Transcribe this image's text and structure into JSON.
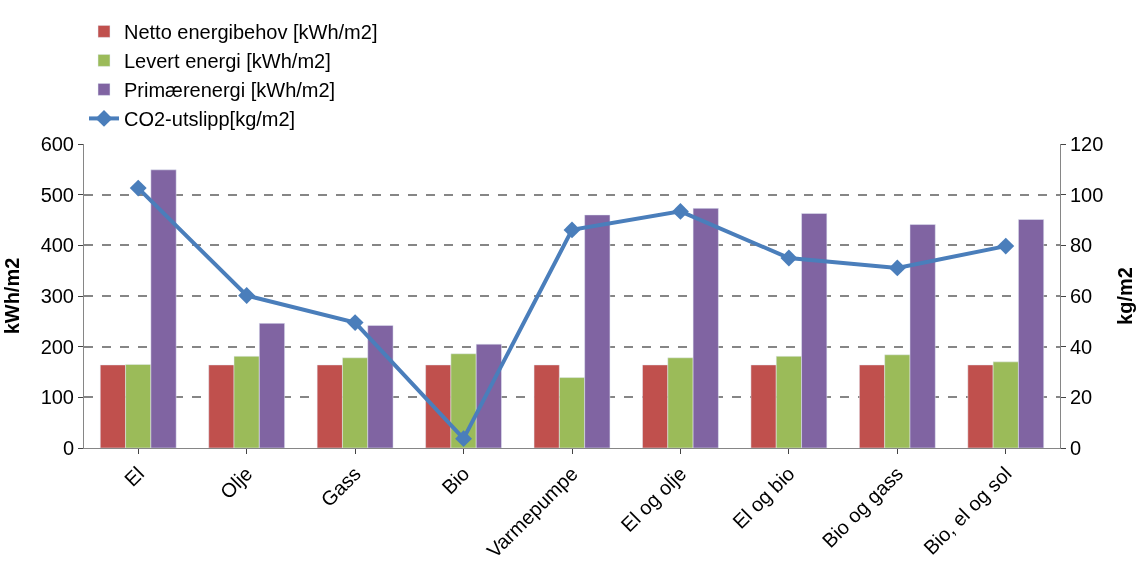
{
  "chart_data": {
    "type": "bar",
    "categories": [
      "El",
      "Olje",
      "Gass",
      "Bio",
      "Varmepumpe",
      "El og olje",
      "El og bio",
      "Bio og gass",
      "Bio, el og sol"
    ],
    "ylabel": "kWh/m2",
    "y2label": "kg/m2",
    "series": [
      {
        "name": "Netto energibehov [kWh/m2]",
        "color": "#c0504d",
        "values": [
          164,
          164,
          164,
          164,
          164,
          164,
          164,
          164,
          164
        ]
      },
      {
        "name": "Levert energi [kWh/m2]",
        "color": "#9bbb59",
        "values": [
          165,
          181,
          178,
          186,
          139,
          178,
          181,
          184,
          170
        ]
      },
      {
        "name": "Primærenergi [kWh/m2]",
        "color": "#8064a2",
        "values": [
          549,
          246,
          242,
          205,
          460,
          473,
          463,
          441,
          451
        ]
      },
      {
        "name": "CO2-utslipp[kg/m2]",
        "color": "#4a7ebb",
        "type": "line",
        "axis": "y2",
        "marker": "diamond",
        "values": [
          102.6,
          60.2,
          49.5,
          3.7,
          86.1,
          93.4,
          75,
          71.1,
          79.7
        ]
      }
    ],
    "ylim": [
      0,
      600
    ],
    "yticks": [
      0,
      100,
      200,
      300,
      400,
      500,
      600
    ],
    "y2lim": [
      0,
      120
    ],
    "y2ticks": [
      0,
      20,
      40,
      60,
      80,
      100,
      120
    ],
    "grid": "y",
    "legend": "top"
  }
}
